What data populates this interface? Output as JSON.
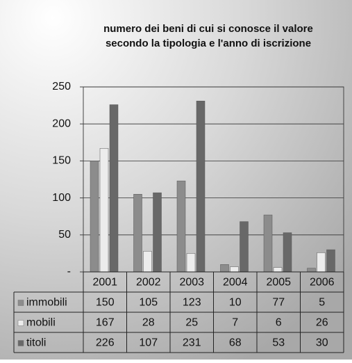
{
  "chart_data": {
    "type": "bar",
    "title": [
      "numero dei beni di cui si conosce il valore",
      "secondo la tipologia e l'anno di iscrizione"
    ],
    "categories": [
      "2001",
      "2002",
      "2003",
      "2004",
      "2005",
      "2006"
    ],
    "series": [
      {
        "name": "immobili",
        "color": "#8c8c8c",
        "values": [
          150,
          105,
          123,
          10,
          77,
          5
        ]
      },
      {
        "name": "mobili",
        "color": "#ececec",
        "values": [
          167,
          28,
          25,
          7,
          6,
          26
        ]
      },
      {
        "name": "titoli",
        "color": "#686868",
        "values": [
          226,
          107,
          231,
          68,
          53,
          30
        ]
      }
    ],
    "ylim": [
      0,
      250
    ],
    "yticks": [
      {
        "value": 0,
        "label": "-"
      },
      50,
      100,
      150,
      200,
      250
    ],
    "grid": true
  }
}
